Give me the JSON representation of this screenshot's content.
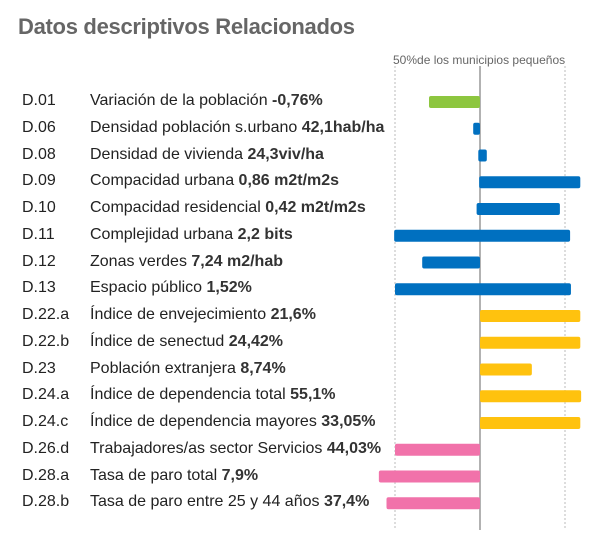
{
  "chart_data": {
    "type": "bar",
    "title": "Datos descriptivos Relacionados",
    "reference_label": "50%de los municipios pequeños",
    "scale_note": "bars centered on median; ±1 = dashed reference lines",
    "xlim": [
      -1.4,
      1.4
    ],
    "colors": {
      "green": "#8dc63f",
      "blue": "#0070c0",
      "yellow": "#ffc20e",
      "pink": "#f172aa"
    },
    "rows": [
      {
        "code": "D.01",
        "label": "Variación de la población",
        "value": "-0,76%",
        "range": [
          -0.6,
          0
        ],
        "color": "green"
      },
      {
        "code": "D.06",
        "label": "Densidad  población s.urbano",
        "value": "42,1hab/ha",
        "range": [
          -0.08,
          0
        ],
        "color": "blue"
      },
      {
        "code": "D.08",
        "label": "Densidad de vivienda",
        "value": "24,3viv/ha",
        "range": [
          -0.02,
          0.08
        ],
        "color": "blue"
      },
      {
        "code": "D.09",
        "label": "Compacidad urbana",
        "value": "0,86 m2t/m2s",
        "range": [
          -0.01,
          1.18
        ],
        "color": "blue"
      },
      {
        "code": "D.10",
        "label": "Compacidad residencial",
        "value": "0,42 m2t/m2s",
        "range": [
          -0.04,
          0.94
        ],
        "color": "blue"
      },
      {
        "code": "D.11",
        "label": "Complejidad urbana",
        "value": "2,2 bits",
        "range": [
          -1.01,
          1.06
        ],
        "color": "blue"
      },
      {
        "code": "D.12",
        "label": "Zonas verdes",
        "value": "7,24 m2/hab",
        "range": [
          -0.68,
          0
        ],
        "color": "blue"
      },
      {
        "code": "D.13",
        "label": "Espacio público",
        "value": "1,52%",
        "range": [
          -1.0,
          1.07
        ],
        "color": "blue"
      },
      {
        "code": "D.22.a",
        "label": "Índice de envejecimiento",
        "value": "21,6%",
        "range": [
          0,
          1.18
        ],
        "color": "yellow"
      },
      {
        "code": "D.22.b",
        "label": "Índice de senectud",
        "value": "24,42%",
        "range": [
          0,
          1.18
        ],
        "color": "yellow"
      },
      {
        "code": "D.23",
        "label": "Población extranjera",
        "value": "8,74%",
        "range": [
          0,
          0.61
        ],
        "color": "yellow"
      },
      {
        "code": "D.24.a",
        "label": "Índice de dependencia total",
        "value": "55,1%",
        "range": [
          0,
          1.19
        ],
        "color": "yellow"
      },
      {
        "code": "D.24.c",
        "label": "Índice de dependencia mayores",
        "value": "33,05%",
        "range": [
          0,
          1.18
        ],
        "color": "yellow"
      },
      {
        "code": "D.26.d",
        "label": "Trabajadores/as sector Servicios",
        "value": "44,03%",
        "range": [
          -1.0,
          0
        ],
        "color": "pink"
      },
      {
        "code": "D.28.a",
        "label": "Tasa de paro total",
        "value": "7,9%",
        "range": [
          -1.19,
          0
        ],
        "color": "pink"
      },
      {
        "code": "D.28.b",
        "label": "Tasa de paro entre 25 y 44 años",
        "value": "37,4%",
        "range": [
          -1.1,
          0
        ],
        "color": "pink"
      }
    ]
  }
}
